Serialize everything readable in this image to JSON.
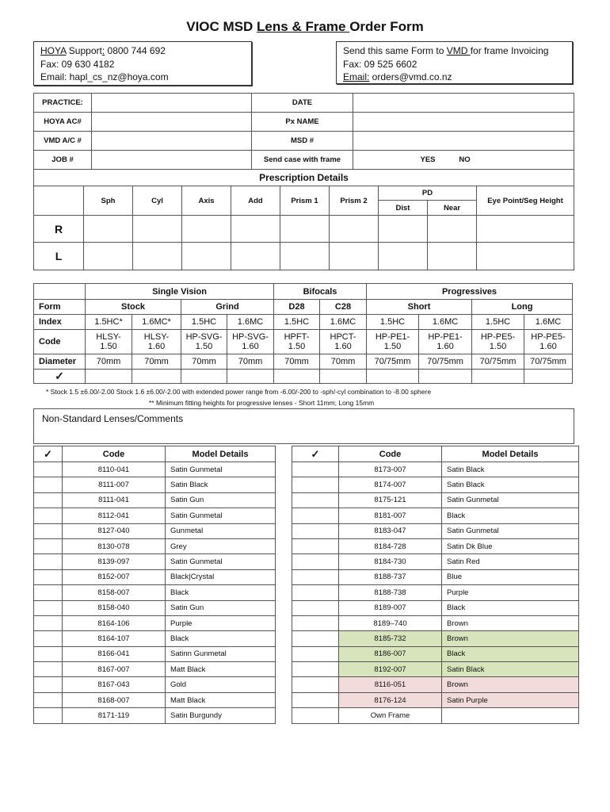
{
  "title": {
    "pre": "VIOC MSD ",
    "underlined": "Lens & Frame ",
    "post": "Order Form"
  },
  "hoya": {
    "brand": "HOYA",
    "support_label": " Support",
    "colon": ":",
    "support": " 0800 744 692",
    "fax": "Fax:  09 630 4182",
    "email": "Email: hapl_cs_nz@hoya.com"
  },
  "vmd": {
    "line1_pre": "Send this same Form to ",
    "line1_brand": "VMD ",
    "line1_post": "for frame Invoicing",
    "fax": "Fax:  09  525 6602",
    "email_label": "Email:",
    "email": " orders@vmd.co.nz"
  },
  "info": {
    "practice": "PRACTICE:",
    "date": "DATE",
    "hoya_ac": "HOYA AC#",
    "px_name": "Px NAME",
    "vmd_ac": "VMD A/C #",
    "msd": "MSD #",
    "job": "JOB #",
    "send_case": "Send case with frame",
    "yes": "YES",
    "no": "NO"
  },
  "rx": {
    "title": "Prescription Details",
    "cols": [
      "Sph",
      "Cyl",
      "Axis",
      "Add",
      "Prism 1",
      "Prism 2"
    ],
    "pd": "PD",
    "dist": "Dist",
    "near": "Near",
    "eye_point": "Eye Point/Seg Height",
    "r": "R",
    "l": "L"
  },
  "lens": {
    "single_vision": "Single Vision",
    "bifocals": "Bifocals",
    "progressives": "Progressives",
    "form": "Form",
    "stock": "Stock",
    "grind": "Grind",
    "d28": "D28",
    "c28": "C28",
    "short": "Short",
    "long": "Long",
    "index_label": "Index",
    "code_label": "Code",
    "diameter_label": "Diameter",
    "check": "✓",
    "index": [
      "1.5HC*",
      "1.6MC*",
      "1.5HC",
      "1.6MC",
      "1.5HC",
      "1.6MC",
      "1.5HC",
      "1.6MC",
      "1.5HC",
      "1.6MC"
    ],
    "code1": [
      "HLSY-",
      "HLSY-",
      "HP-SVG-",
      "HP-SVG-",
      "HPFT-",
      "HPCT-",
      "HP-PE1-",
      "HP-PE1-",
      "HP-PE5-",
      "HP-PE5-"
    ],
    "code2": [
      "1.50",
      "1.60",
      "1.50",
      "1.60",
      "1.50",
      "1.60",
      "1.50",
      "1.60",
      "1.50",
      "1.60"
    ],
    "diameter": [
      "70mm",
      "70mm",
      "70mm",
      "70mm",
      "70mm",
      "70mm",
      "70/75mm",
      "70/75mm",
      "70/75mm",
      "70/75mm"
    ]
  },
  "footnotes": [
    "* Stock 1.5 ±6.00/-2.00  Stock 1.6 ±6.00/-2.00 with extended power range from -6.00/-200 to -sph/-cyl combination to -8.00 sphere",
    "**   Minimum fitting heights for progressive lenses - Short 11mm; Long 15mm"
  ],
  "comments_label": "Non-Standard Lenses/Comments",
  "frames_header": {
    "check": "✓",
    "code": "Code",
    "model": "Model Details"
  },
  "colors": {
    "green": "#d8e4bc",
    "pink": "#f2dcdb"
  },
  "frames_left": [
    {
      "code": "8110-041",
      "model": "Satin Gunmetal"
    },
    {
      "code": "8111-007",
      "model": "Satin Black"
    },
    {
      "code": "8111-041",
      "model": "Satin Gun"
    },
    {
      "code": "8112-041",
      "model": "Satin Gunmetal"
    },
    {
      "code": "8127-040",
      "model": "Gunmetal"
    },
    {
      "code": "8130-078",
      "model": "Grey"
    },
    {
      "code": "8139-097",
      "model": "Satin Gunmetal"
    },
    {
      "code": "8152-007",
      "model": "Black|Crystal"
    },
    {
      "code": "8158-007",
      "model": "Black"
    },
    {
      "code": "8158-040",
      "model": "Satin Gun"
    },
    {
      "code": "8164-106",
      "model": "Purple"
    },
    {
      "code": "8164-107",
      "model": "Black"
    },
    {
      "code": "8166-041",
      "model": "Satinn Gunmetal"
    },
    {
      "code": "8167-007",
      "model": "Matt Black"
    },
    {
      "code": "8167-043",
      "model": "Gold"
    },
    {
      "code": "8168-007",
      "model": "Matt Black"
    },
    {
      "code": "8171-119",
      "model": "Satin Burgundy"
    }
  ],
  "frames_right": [
    {
      "code": "8173-007",
      "model": "Satin Black"
    },
    {
      "code": "8174-007",
      "model": "Satin Black"
    },
    {
      "code": "8175-121",
      "model": "Satin Gunmetal"
    },
    {
      "code": "8181-007",
      "model": "Black"
    },
    {
      "code": "8183-047",
      "model": "Satin Gunmetal"
    },
    {
      "code": "8184-728",
      "model": "Satin Dk Blue"
    },
    {
      "code": "8184-730",
      "model": "Satin Red"
    },
    {
      "code": "8188-737",
      "model": "Blue"
    },
    {
      "code": "8188-738",
      "model": "Purple"
    },
    {
      "code": "8189-007",
      "model": "Black"
    },
    {
      "code": "8189–740",
      "model": "Brown"
    },
    {
      "code": "8185-732",
      "model": "Brown",
      "hl": "green"
    },
    {
      "code": "8186-007",
      "model": "Black",
      "hl": "green"
    },
    {
      "code": "8192-007",
      "model": "Satin Black",
      "hl": "green"
    },
    {
      "code": "8116-051",
      "model": "Brown",
      "hl": "pink"
    },
    {
      "code": "8176-124",
      "model": "Satin Purple",
      "hl": "pink"
    },
    {
      "code": "Own Frame",
      "model": ""
    }
  ]
}
